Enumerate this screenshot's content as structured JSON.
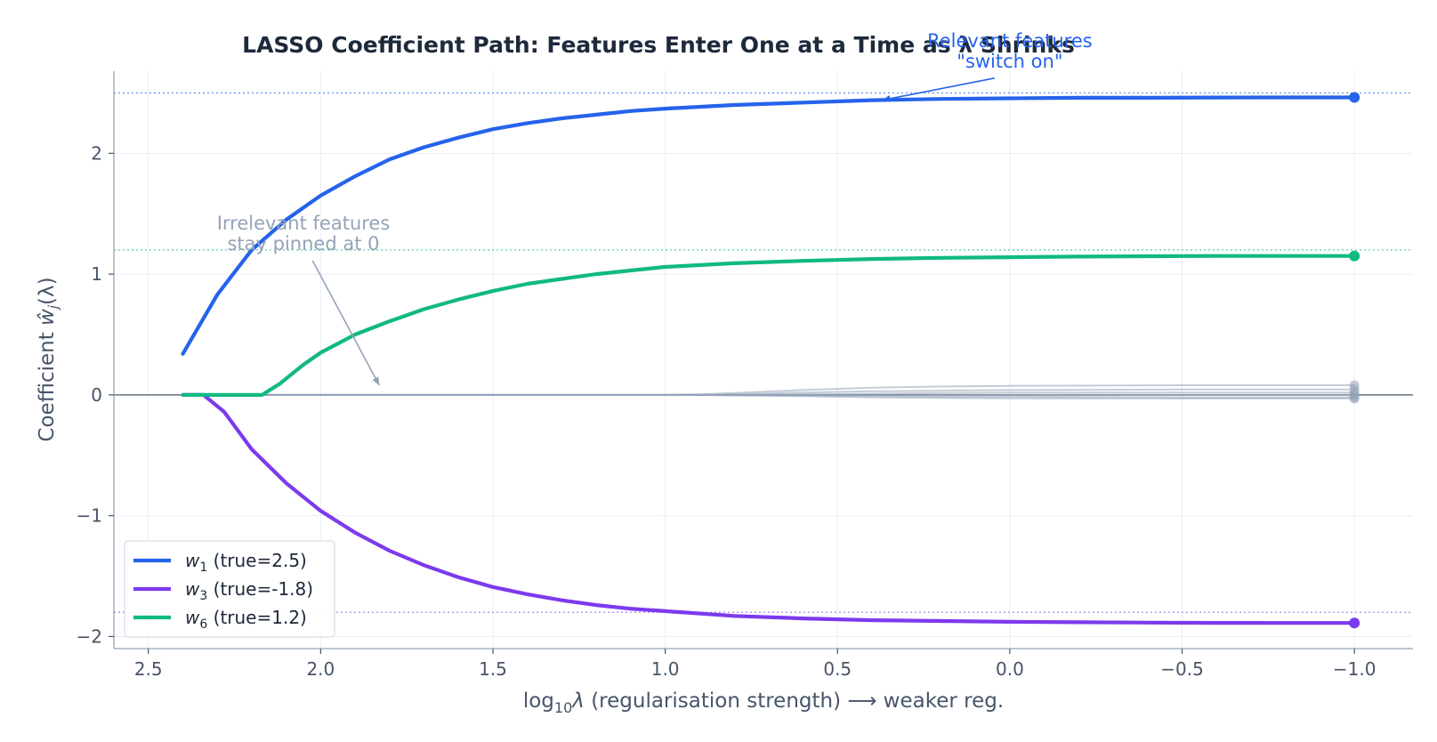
{
  "chart_data": {
    "type": "line",
    "title": "LASSO Coefficient Path:  Features Enter One at a Time as λ Shrinks",
    "xlabel_parts": [
      "log",
      "10",
      "λ",
      "  (regularisation strength)  ⟶  weaker reg."
    ],
    "ylabel_parts": [
      "Coefficient  ",
      "ŵ",
      "j",
      "(λ)"
    ],
    "x_reversed": true,
    "xlim": [
      2.6,
      -1.17
    ],
    "ylim": [
      -2.1,
      2.68
    ],
    "xticks": [
      2.5,
      2.0,
      1.5,
      1.0,
      0.5,
      0.0,
      -0.5,
      -1.0
    ],
    "xtick_labels": [
      "2.5",
      "2.0",
      "1.5",
      "1.0",
      "0.5",
      "0.0",
      "−0.5",
      "−1.0"
    ],
    "yticks": [
      -2,
      -1,
      0,
      1,
      2
    ],
    "ytick_labels": [
      "−2",
      "−1",
      "0",
      "1",
      "2"
    ],
    "grid": true,
    "legend_position": "lower-left",
    "series": [
      {
        "name": "w1",
        "legend_sub": "1",
        "legend_suffix": "  (true=2.5)",
        "color": "#2563eb",
        "true_value": 2.5,
        "x": [
          2.4,
          2.3,
          2.2,
          2.1,
          2.0,
          1.9,
          1.8,
          1.7,
          1.6,
          1.5,
          1.4,
          1.3,
          1.2,
          1.1,
          1.0,
          0.8,
          0.6,
          0.4,
          0.2,
          0.0,
          -0.2,
          -0.4,
          -0.6,
          -0.8,
          -1.0
        ],
        "y": [
          0.34,
          0.83,
          1.2,
          1.45,
          1.65,
          1.81,
          1.95,
          2.05,
          2.13,
          2.2,
          2.25,
          2.29,
          2.32,
          2.35,
          2.37,
          2.4,
          2.42,
          2.44,
          2.45,
          2.455,
          2.46,
          2.46,
          2.462,
          2.463,
          2.463
        ]
      },
      {
        "name": "w3",
        "legend_sub": "3",
        "legend_suffix": "  (true=-1.8)",
        "color": "#7c3aed",
        "true_value": -1.8,
        "x": [
          2.4,
          2.34,
          2.28,
          2.2,
          2.1,
          2.0,
          1.9,
          1.8,
          1.7,
          1.6,
          1.5,
          1.4,
          1.3,
          1.2,
          1.1,
          1.0,
          0.8,
          0.6,
          0.4,
          0.2,
          0.0,
          -0.2,
          -0.4,
          -0.6,
          -0.8,
          -1.0
        ],
        "y": [
          0.0,
          0.0,
          -0.14,
          -0.45,
          -0.73,
          -0.96,
          -1.14,
          -1.29,
          -1.41,
          -1.51,
          -1.59,
          -1.65,
          -1.7,
          -1.74,
          -1.77,
          -1.79,
          -1.83,
          -1.85,
          -1.865,
          -1.872,
          -1.878,
          -1.882,
          -1.885,
          -1.887,
          -1.888,
          -1.888
        ]
      },
      {
        "name": "w6",
        "legend_sub": "6",
        "legend_suffix": "  (true=1.2)",
        "color": "#10b981",
        "true_value": 1.2,
        "x": [
          2.4,
          2.3,
          2.2,
          2.17,
          2.12,
          2.05,
          2.0,
          1.9,
          1.8,
          1.7,
          1.6,
          1.5,
          1.4,
          1.3,
          1.2,
          1.1,
          1.0,
          0.8,
          0.6,
          0.4,
          0.2,
          0.0,
          -0.2,
          -0.4,
          -0.6,
          -0.8,
          -1.0
        ],
        "y": [
          0.0,
          0.0,
          0.0,
          0.0,
          0.09,
          0.25,
          0.35,
          0.5,
          0.61,
          0.71,
          0.79,
          0.86,
          0.92,
          0.96,
          1.0,
          1.03,
          1.06,
          1.09,
          1.11,
          1.125,
          1.135,
          1.14,
          1.145,
          1.148,
          1.15,
          1.15,
          1.15
        ]
      }
    ],
    "irrelevant_series": {
      "color": "#94a3b8",
      "x": [
        2.4,
        1.5,
        1.0,
        0.9,
        0.8,
        0.6,
        0.4,
        0.2,
        0.0,
        -0.5,
        -1.0
      ],
      "ys": [
        [
          0,
          0,
          0,
          0.005,
          0.015,
          0.04,
          0.06,
          0.07,
          0.075,
          0.08,
          0.08
        ],
        [
          0,
          0,
          0,
          0,
          0.005,
          0.02,
          0.03,
          0.035,
          0.04,
          0.045,
          0.045
        ],
        [
          0,
          0,
          0,
          0,
          0,
          0.005,
          0.01,
          0.015,
          0.02,
          0.02,
          0.02
        ],
        [
          0,
          0,
          0,
          0,
          0,
          0,
          0,
          0,
          0,
          0,
          0
        ],
        [
          0,
          0,
          0,
          0,
          0,
          -0.005,
          -0.01,
          -0.015,
          -0.015,
          -0.02,
          -0.02
        ],
        [
          0,
          0,
          0,
          0,
          -0.005,
          -0.01,
          -0.02,
          -0.025,
          -0.028,
          -0.03,
          -0.03
        ]
      ]
    },
    "annotations": [
      {
        "lines": [
          "Relevant features",
          "\"switch on\""
        ],
        "color": "#2563eb",
        "text_x": 0.0,
        "text_y": 2.88,
        "arrow_x": 0.37,
        "arrow_y": 2.44
      },
      {
        "lines": [
          "Irrelevant features",
          "stay pinned at 0"
        ],
        "color": "#94a3b8",
        "text_x": 2.05,
        "text_y": 1.37,
        "arrow_x": 1.83,
        "arrow_y": 0.08
      }
    ]
  }
}
